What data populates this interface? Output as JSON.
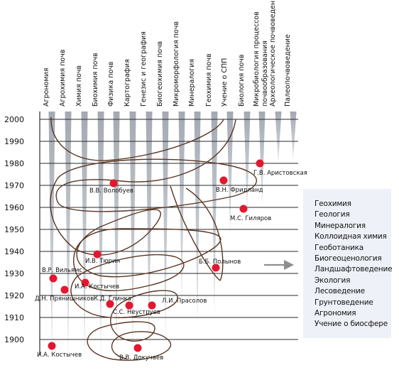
{
  "disciplines": [
    "Агрономия",
    "Агрохимия почв",
    "Химия почв",
    "Биохимия почв",
    "Физика почв",
    "Картография",
    "Генезис и география",
    "Биогеохимия почв",
    "Микроморфология почв",
    "Минералогия",
    "Геохимия почв",
    "Учение о СПП",
    "Биология почв",
    "Микробиология процессов почвообразования",
    "Археологическое почвоведение",
    "Палеопочвоведение"
  ],
  "years": [
    "2000",
    "1990",
    "1980",
    "1970",
    "1960",
    "1950",
    "1940",
    "1930",
    "1920",
    "1910",
    "1900"
  ],
  "scientists": [
    {
      "name": "Г.В. Аристовская"
    },
    {
      "name": "В.В. Волобуев"
    },
    {
      "name": "В.Н. Фридланд"
    },
    {
      "name": "М.С. Гиляров"
    },
    {
      "name": "И.В. Тюрин"
    },
    {
      "name": "Б.Б. Полынов"
    },
    {
      "name": "В.Р. Вильямс"
    },
    {
      "name": "И.А. Костычев"
    },
    {
      "name": "Д.Н. Прянишников"
    },
    {
      "name": "К.Д. Глинка"
    },
    {
      "name": "Л.И. Прасолов"
    },
    {
      "name": "С.С. Неуструев"
    },
    {
      "name": "И.А. Костычев"
    },
    {
      "name": "В.В. Докучаев"
    }
  ],
  "related_sciences": [
    "Геохимия",
    "Геология",
    "Минералогия",
    "Коллоидная химия",
    "Геоботаника",
    "Биогеоценология",
    "Ландшафтоведение",
    "Экология",
    "Лесоведение",
    "Грунтоведение",
    "Агрономия",
    "Учение о биосфере"
  ],
  "colors": {
    "dot": "#e3172e",
    "wedge": "#a4aab3",
    "line": "#2a2a2a",
    "spiral": "#5a3522",
    "arrow": "#8e8e8e"
  }
}
